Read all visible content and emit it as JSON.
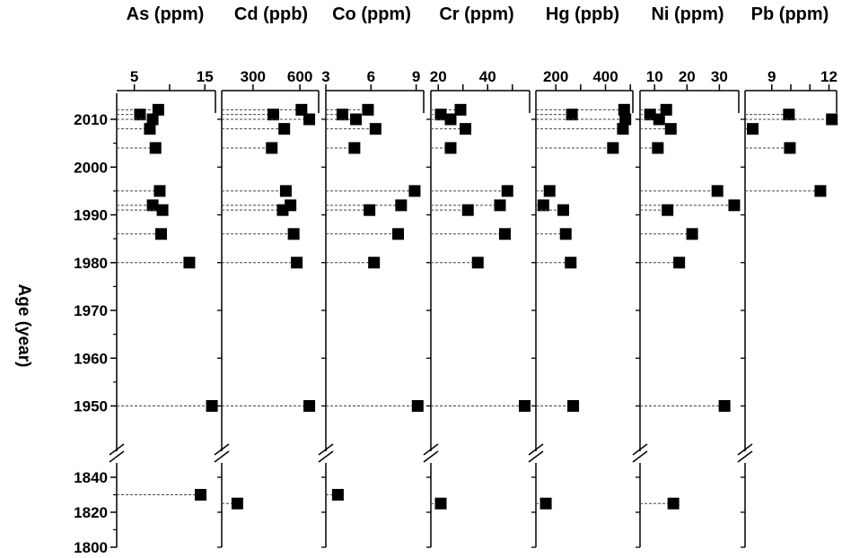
{
  "chart_data": {
    "type": "scatter",
    "ylabel": "Age (year)",
    "y_axis": {
      "upper_segment": {
        "ylim": [
          1940,
          2015
        ],
        "ticks": [
          1950,
          1960,
          1970,
          1980,
          1990,
          2000,
          2010
        ],
        "tick_labels": [
          "1950",
          "1960",
          "1970",
          "1980",
          "1990",
          "2000",
          "2010"
        ]
      },
      "lower_segment": {
        "ylim": [
          1800,
          1845
        ],
        "ticks": [
          1800,
          1820,
          1840
        ],
        "tick_labels": [
          "1800",
          "1820",
          "1840"
        ]
      },
      "axis_break": true
    },
    "guide_lines": "dashed",
    "marker": "filled-square",
    "marker_color": "#000000",
    "panels": [
      {
        "title": "As (ppm)",
        "xlim": [
          2.5,
          16.5
        ],
        "ticks": [
          5,
          10,
          15
        ],
        "tick_labels": [
          "5",
          "",
          "15"
        ],
        "points": [
          {
            "x": 8.4,
            "y": 2012
          },
          {
            "x": 5.8,
            "y": 2011
          },
          {
            "x": 7.6,
            "y": 2010
          },
          {
            "x": 7.2,
            "y": 2008
          },
          {
            "x": 8.0,
            "y": 2004
          },
          {
            "x": 8.6,
            "y": 1995
          },
          {
            "x": 7.6,
            "y": 1992
          },
          {
            "x": 9.0,
            "y": 1991
          },
          {
            "x": 8.8,
            "y": 1986
          },
          {
            "x": 12.8,
            "y": 1980
          },
          {
            "x": 16.0,
            "y": 1950
          },
          {
            "x": 14.4,
            "y": 1830
          }
        ]
      },
      {
        "title": "Cd (ppb)",
        "xlim": [
          100,
          720
        ],
        "ticks": [
          300,
          600
        ],
        "tick_labels": [
          "300",
          "600"
        ],
        "points": [
          {
            "x": 610,
            "y": 2012
          },
          {
            "x": 430,
            "y": 2011
          },
          {
            "x": 660,
            "y": 2010
          },
          {
            "x": 500,
            "y": 2008
          },
          {
            "x": 420,
            "y": 2004
          },
          {
            "x": 510,
            "y": 1995
          },
          {
            "x": 540,
            "y": 1992
          },
          {
            "x": 490,
            "y": 1991
          },
          {
            "x": 560,
            "y": 1986
          },
          {
            "x": 580,
            "y": 1980
          },
          {
            "x": 660,
            "y": 1950
          },
          {
            "x": 200,
            "y": 1825
          }
        ]
      },
      {
        "title": "Co (ppm)",
        "xlim": [
          3,
          9.5
        ],
        "ticks": [
          3,
          6,
          9
        ],
        "tick_labels": [
          "3",
          "6",
          "9"
        ],
        "points": [
          {
            "x": 5.8,
            "y": 2012
          },
          {
            "x": 4.1,
            "y": 2011
          },
          {
            "x": 5.0,
            "y": 2010
          },
          {
            "x": 6.3,
            "y": 2008
          },
          {
            "x": 4.9,
            "y": 2004
          },
          {
            "x": 8.9,
            "y": 1995
          },
          {
            "x": 8.0,
            "y": 1992
          },
          {
            "x": 5.9,
            "y": 1991
          },
          {
            "x": 7.8,
            "y": 1986
          },
          {
            "x": 6.2,
            "y": 1980
          },
          {
            "x": 9.1,
            "y": 1950
          },
          {
            "x": 3.8,
            "y": 1830
          }
        ]
      },
      {
        "title": "Cr (ppm)",
        "xlim": [
          17,
          57
        ],
        "ticks": [
          20,
          30,
          40,
          50
        ],
        "tick_labels": [
          "20",
          "",
          "40",
          ""
        ],
        "points": [
          {
            "x": 29,
            "y": 2012
          },
          {
            "x": 21,
            "y": 2011
          },
          {
            "x": 25,
            "y": 2010
          },
          {
            "x": 31,
            "y": 2008
          },
          {
            "x": 25,
            "y": 2004
          },
          {
            "x": 48,
            "y": 1995
          },
          {
            "x": 45,
            "y": 1992
          },
          {
            "x": 32,
            "y": 1991
          },
          {
            "x": 47,
            "y": 1986
          },
          {
            "x": 36,
            "y": 1980
          },
          {
            "x": 55,
            "y": 1950
          },
          {
            "x": 21,
            "y": 1825
          }
        ]
      },
      {
        "title": "Hg (ppb)",
        "xlim": [
          120,
          510
        ],
        "ticks": [
          200,
          300,
          400,
          500
        ],
        "tick_labels": [
          "200",
          "",
          "400",
          ""
        ],
        "points": [
          {
            "x": 475,
            "y": 2012
          },
          {
            "x": 265,
            "y": 2011
          },
          {
            "x": 480,
            "y": 2010
          },
          {
            "x": 470,
            "y": 2008
          },
          {
            "x": 430,
            "y": 2004
          },
          {
            "x": 175,
            "y": 1995
          },
          {
            "x": 150,
            "y": 1992
          },
          {
            "x": 230,
            "y": 1991
          },
          {
            "x": 240,
            "y": 1986
          },
          {
            "x": 260,
            "y": 1980
          },
          {
            "x": 270,
            "y": 1950
          },
          {
            "x": 160,
            "y": 1825
          }
        ]
      },
      {
        "title": "Ni (ppm)",
        "xlim": [
          5.5,
          36
        ],
        "ticks": [
          10,
          20,
          30
        ],
        "tick_labels": [
          "10",
          "20",
          "30"
        ],
        "points": [
          {
            "x": 13.6,
            "y": 2012
          },
          {
            "x": 8.6,
            "y": 2011
          },
          {
            "x": 11.4,
            "y": 2010
          },
          {
            "x": 15.0,
            "y": 2008
          },
          {
            "x": 11.0,
            "y": 2004
          },
          {
            "x": 29.4,
            "y": 1995
          },
          {
            "x": 34.6,
            "y": 1992
          },
          {
            "x": 14.0,
            "y": 1991
          },
          {
            "x": 21.6,
            "y": 1986
          },
          {
            "x": 17.6,
            "y": 1980
          },
          {
            "x": 31.6,
            "y": 1950
          },
          {
            "x": 15.8,
            "y": 1825
          }
        ]
      },
      {
        "title": "Pb (ppm)",
        "xlim": [
          7.6,
          12.4
        ],
        "ticks": [
          9,
          10,
          11,
          12
        ],
        "tick_labels": [
          "9",
          "",
          "",
          "12"
        ],
        "points": [
          {
            "x": 9.9,
            "y": 2011
          },
          {
            "x": 12.15,
            "y": 2010
          },
          {
            "x": 8.0,
            "y": 2008
          },
          {
            "x": 9.95,
            "y": 2004
          },
          {
            "x": 11.55,
            "y": 1995
          }
        ]
      }
    ]
  }
}
